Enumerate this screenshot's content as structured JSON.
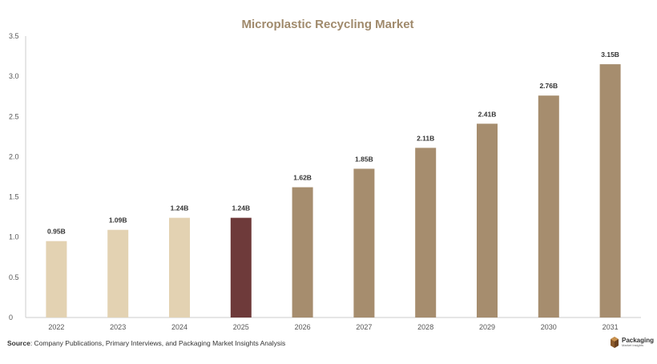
{
  "chart_data": {
    "type": "bar",
    "title": "Microplastic Recycling Market",
    "categories": [
      "2022",
      "2023",
      "2024",
      "2025",
      "2026",
      "2027",
      "2028",
      "2029",
      "2030",
      "2031"
    ],
    "values": [
      0.95,
      1.09,
      1.24,
      1.24,
      1.62,
      1.85,
      2.11,
      2.41,
      2.76,
      3.15
    ],
    "data_labels": [
      "0.95B",
      "1.09B",
      "1.24B",
      "1.24B",
      "1.62B",
      "1.85B",
      "2.11B",
      "2.41B",
      "2.76B",
      "3.15B"
    ],
    "yticks": [
      "0",
      "0.5",
      "1.0",
      "1.5",
      "2.0",
      "2.5",
      "3.0",
      "3.5"
    ],
    "ylim": [
      0,
      3.5
    ],
    "xlabel": "",
    "ylabel": "",
    "grid": false,
    "bar_colors": [
      "#e3d2b2",
      "#e3d2b2",
      "#e3d2b2",
      "#6e3a3a",
      "#a68d6e",
      "#a68d6e",
      "#a68d6e",
      "#a68d6e",
      "#a68d6e",
      "#a68d6e"
    ]
  },
  "colors": {
    "title": "#a08a6c",
    "axis": "#cccccc"
  },
  "source": {
    "label": "Source",
    "text": ": Company Publications, Primary Interviews, and Packaging Market Insights Analysis"
  },
  "logo": {
    "name": "Packaging",
    "tagline": "Market Insights"
  }
}
